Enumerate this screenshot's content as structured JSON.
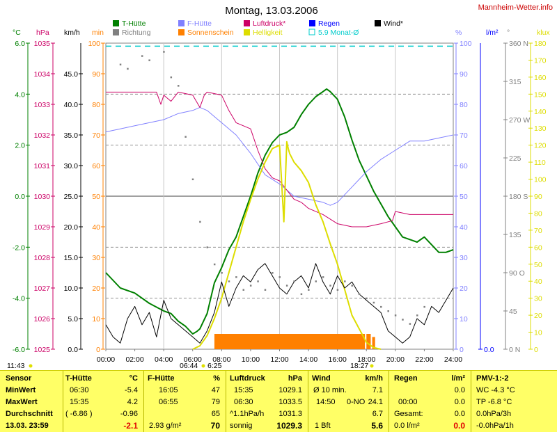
{
  "title": "Montag, 13.03.2006",
  "site": "Mannheim-Wetter.info",
  "colors": {
    "temp": "#008000",
    "hum": "#8080ff",
    "press": "#cc0066",
    "rich": "#808080",
    "sun": "#ff8000",
    "light": "#dddd00",
    "rain": "#0000ff",
    "avg": "#00cccc",
    "wind": "#000000",
    "min": "#ff8000",
    "grid": "#808080"
  },
  "legend": [
    {
      "label": "T-Hütte",
      "color": "#008000",
      "kind": "box"
    },
    {
      "label": "F-Hütte",
      "color": "#8080ff",
      "kind": "box"
    },
    {
      "label": "Luftdruck*",
      "color": "#cc0066",
      "kind": "box"
    },
    {
      "label": "Regen",
      "color": "#0000ff",
      "kind": "box"
    },
    {
      "label": "Wind*",
      "color": "#000000",
      "kind": "box"
    },
    {
      "label": "Richtung",
      "color": "#808080",
      "kind": "box"
    },
    {
      "label": "Sonnenschein",
      "color": "#ff8000",
      "kind": "box"
    },
    {
      "label": "Helligkeit",
      "color": "#dddd00",
      "kind": "box"
    },
    {
      "label": "5.9 Monat-Ø",
      "color": "#00cccc",
      "kind": "outline"
    }
  ],
  "axes": {
    "temp": {
      "unit": "°C",
      "ticks": [
        "6.0",
        "4.0",
        "2.0",
        "0.0",
        "-2.0",
        "-4.0",
        "-6.0"
      ]
    },
    "press": {
      "unit": "hPa",
      "ticks": [
        "1035",
        "1034",
        "1033",
        "1032",
        "1031",
        "1030",
        "1029",
        "1028",
        "1027",
        "1026",
        "1025"
      ]
    },
    "wind": {
      "unit": "km/h",
      "ticks": [
        "45.0",
        "40.0",
        "35.0",
        "30.0",
        "25.0",
        "20.0",
        "15.0",
        "10.0",
        "5.0",
        "0.0"
      ]
    },
    "min": {
      "unit": "min",
      "ticks": [
        "100",
        "90",
        "80",
        "70",
        "60",
        "50",
        "40",
        "30",
        "20",
        "10",
        "0"
      ]
    },
    "hum": {
      "unit": "%",
      "ticks": [
        "100",
        "90",
        "80",
        "70",
        "60",
        "50",
        "40",
        "30",
        "20",
        "10",
        "0"
      ]
    },
    "rain": {
      "unit": "l/m²",
      "ticks": [
        "0.0"
      ]
    },
    "dir": {
      "unit": "°",
      "ticks": [
        "360 N",
        "315",
        "270 W",
        "225",
        "180 S",
        "135",
        "90 O",
        "45",
        "0 N"
      ]
    },
    "lux": {
      "unit": "klux",
      "ticks": [
        "180",
        "170",
        "160",
        "150",
        "140",
        "130",
        "120",
        "110",
        "100",
        "90",
        "80",
        "70",
        "60",
        "50",
        "40",
        "30",
        "20",
        "10",
        "0"
      ]
    },
    "x": {
      "ticks": [
        "00:00",
        "02:00",
        "04:00",
        "06:00",
        "08:00",
        "10:00",
        "12:00",
        "14:00",
        "16:00",
        "18:00",
        "20:00",
        "22:00",
        "24:00"
      ]
    }
  },
  "sun_events": {
    "sunrise_time": "06:44",
    "sunrise_fill": "6:25",
    "sunset": "18:27",
    "left": "11:43"
  },
  "chart_data": {
    "type": "line",
    "x_range": [
      0,
      24
    ],
    "series": [
      {
        "name": "T-Hütte",
        "axis": "temp",
        "ylim": [
          -6,
          6
        ],
        "x": [
          0,
          1,
          2,
          3,
          4,
          4.5,
          5,
          5.5,
          6,
          6.3,
          6.5,
          7,
          7.5,
          8,
          8.5,
          9,
          9.5,
          10,
          10.5,
          11,
          11.5,
          12,
          12.5,
          13,
          13.5,
          14,
          14.5,
          15,
          15.25,
          15.5,
          16,
          16.5,
          17,
          17.5,
          18,
          18.5,
          19,
          19.5,
          20,
          20.5,
          21,
          21.5,
          22,
          22.5,
          23,
          23.5,
          24
        ],
        "y": [
          -3.0,
          -3.6,
          -3.8,
          -4.2,
          -4.5,
          -4.6,
          -4.9,
          -5.1,
          -5.4,
          -5.3,
          -5.2,
          -4.6,
          -3.4,
          -2.8,
          -2.1,
          -1.6,
          -0.8,
          0.0,
          0.9,
          1.6,
          2.1,
          2.4,
          2.5,
          2.7,
          3.2,
          3.6,
          3.9,
          4.1,
          4.2,
          4.1,
          3.8,
          3.1,
          2.2,
          1.4,
          0.8,
          0.2,
          -0.3,
          -0.8,
          -1.2,
          -1.6,
          -1.7,
          -1.8,
          -1.6,
          -1.9,
          -2.2,
          -2.2,
          -2.1
        ]
      },
      {
        "name": "F-Hütte",
        "axis": "hum",
        "ylim": [
          0,
          100
        ],
        "x": [
          0,
          1,
          2,
          3,
          4,
          5,
          6,
          6.5,
          7,
          7.5,
          8,
          9,
          10,
          11,
          12,
          13,
          14,
          15,
          15.5,
          16,
          17,
          18,
          19,
          20,
          21,
          22,
          23,
          24
        ],
        "y": [
          71,
          72,
          73,
          74,
          75,
          77,
          78,
          79,
          78,
          76,
          74,
          70,
          64,
          57,
          54,
          50,
          49,
          48,
          47,
          48,
          53,
          58,
          62,
          65,
          68,
          68,
          69,
          70
        ]
      },
      {
        "name": "Luftdruck*",
        "axis": "press",
        "ylim": [
          1025,
          1035
        ],
        "x": [
          0,
          3.5,
          3.8,
          4,
          4.5,
          5,
          6,
          6.5,
          6.8,
          7,
          8,
          8.5,
          9,
          9.5,
          10,
          10.5,
          11,
          11.5,
          12,
          12.5,
          13,
          13.5,
          14,
          15,
          16,
          17,
          18,
          19,
          19.8,
          20,
          21,
          22,
          24
        ],
        "y": [
          1033.4,
          1033.4,
          1033.0,
          1033.3,
          1033.1,
          1033.4,
          1033.3,
          1032.9,
          1033.3,
          1033.4,
          1033.3,
          1032.8,
          1032.4,
          1032.3,
          1032.2,
          1031.5,
          1030.9,
          1030.6,
          1030.5,
          1030.2,
          1029.9,
          1029.8,
          1029.6,
          1029.4,
          1029.1,
          1029.0,
          1029.0,
          1029.1,
          1029.2,
          1029.5,
          1029.4,
          1029.4,
          1029.4
        ]
      },
      {
        "name": "Helligkeit",
        "axis": "lux",
        "ylim": [
          0,
          180
        ],
        "x": [
          6,
          6.5,
          7,
          7.5,
          8,
          8.5,
          9,
          9.5,
          10,
          10.5,
          11,
          11.5,
          12,
          12.3,
          12.5,
          12.6,
          12.7,
          13,
          13.5,
          14,
          14.5,
          15,
          15.5,
          16,
          16.5,
          17,
          17.5,
          18,
          18.5,
          19
        ],
        "y": [
          0,
          2,
          8,
          18,
          30,
          45,
          60,
          75,
          88,
          100,
          110,
          118,
          120,
          75,
          122,
          118,
          115,
          110,
          105,
          98,
          85,
          75,
          62,
          50,
          35,
          20,
          12,
          4,
          1,
          0
        ]
      },
      {
        "name": "Wind*",
        "axis": "wind",
        "ylim": [
          0,
          50
        ],
        "x": [
          0,
          0.5,
          1,
          1.5,
          2,
          2.5,
          3,
          3.5,
          4,
          4.5,
          5,
          5.5,
          6,
          6.5,
          7,
          7.5,
          8,
          8.5,
          9,
          9.5,
          10,
          10.5,
          11,
          11.5,
          12,
          12.5,
          13,
          13.5,
          14,
          14.5,
          15,
          15.5,
          16,
          16.5,
          17,
          17.5,
          18,
          18.5,
          19,
          19.5,
          20,
          20.5,
          21,
          21.5,
          22,
          22.5,
          23,
          23.5,
          24
        ],
        "y": [
          4,
          2,
          1,
          5,
          7,
          4,
          6,
          2,
          8,
          5,
          4,
          3,
          2,
          1,
          3,
          6,
          11,
          7,
          10,
          12,
          11,
          13,
          14,
          12,
          10,
          9,
          11,
          12,
          10,
          14,
          11,
          9,
          12,
          10,
          11,
          9,
          8,
          7,
          6,
          3,
          2,
          1,
          2,
          5,
          4,
          7,
          6,
          8,
          10
        ]
      },
      {
        "name": "Richtung",
        "axis": "dir",
        "ylim": [
          0,
          360
        ],
        "x": [
          1,
          1.5,
          2.5,
          3,
          4,
          4.5,
          5,
          5.5,
          6,
          6.5,
          7,
          7.5,
          8,
          8.5,
          9,
          9.5,
          10,
          10.5,
          11,
          11.5,
          12,
          12.5,
          13,
          13.5,
          14,
          14.5,
          15,
          15.5,
          16,
          16.5,
          17,
          17.5,
          18,
          18.5,
          19,
          19.5,
          20,
          20.5,
          21,
          21.5,
          22
        ],
        "y": [
          335,
          330,
          345,
          340,
          350,
          320,
          310,
          250,
          200,
          150,
          120,
          100,
          90,
          80,
          85,
          70,
          75,
          80,
          70,
          90,
          85,
          75,
          80,
          65,
          70,
          80,
          85,
          75,
          70,
          80,
          75,
          65,
          60,
          55,
          50,
          45,
          40,
          35,
          30,
          40,
          50
        ]
      },
      {
        "name": "5.9 Monat-Ø",
        "axis": "hum",
        "ylim": [
          0,
          100
        ],
        "x": [
          0,
          24
        ],
        "y": [
          99,
          99
        ]
      }
    ],
    "sunshine_minutes": {
      "name": "Sonnenschein",
      "axis": "min",
      "ylim": [
        0,
        100
      ],
      "bars": [
        [
          7.5,
          17.9,
          5
        ],
        [
          18.0,
          18.3,
          5
        ],
        [
          18.4,
          18.6,
          4
        ]
      ]
    },
    "rain": {
      "name": "Regen",
      "total": "0.0"
    }
  },
  "stats": {
    "sensor": {
      "h1": "Sensor",
      "r1": "MinWert",
      "r2": "MaxWert",
      "r3": "Durchschnitt",
      "r4": "13.03.  23:59"
    },
    "temp": {
      "h1": "T-Hütte",
      "h2": "°C",
      "r1a": "06:30",
      "r1b": "-5.4",
      "r2a": "15:35",
      "r2b": "4.2",
      "r3a": "( -6.86 )",
      "r3b": "-0.96",
      "r4b": "-2.1"
    },
    "hum": {
      "h1": "F-Hütte",
      "h2": "%",
      "r1a": "16:05",
      "r1b": "47",
      "r2a": "06:55",
      "r2b": "79",
      "r3b": "65",
      "r4a": "2.93 g/m²",
      "r4b": "70"
    },
    "press": {
      "h1": "Luftdruck",
      "h2": "hPa",
      "r1a": "15:35",
      "r1b": "1029.1",
      "r2a": "06:30",
      "r2b": "1033.5",
      "r3a": "^1.1hPa/h",
      "r3b": "1031.3",
      "r4a": "sonnig",
      "r4b": "1029.3"
    },
    "wind": {
      "h1": "Wind",
      "h2": "km/h",
      "r1a": "Ø 10 min.",
      "r1b": "7.1",
      "r2a": "14:50",
      "r2c": "0-NO",
      "r2b": "24.1",
      "r3b": "6.7",
      "r4a": "1 Bft",
      "r4b": "5.6"
    },
    "rain": {
      "h1": "Regen",
      "h2": "l/m²",
      "r1b": "0.0",
      "r2a": "00:00",
      "r2b": "0.0",
      "r3a": "Gesamt:",
      "r3b": "0.0",
      "r4a": "0.0 l/m²",
      "r4b": "0.0"
    },
    "pmv": {
      "h1": "PMV-1:-2",
      "r1": "WC -4.3 °C",
      "r2": "TP -6.8 °C",
      "r3": "0.0hPa/3h",
      "r4": "-0.0hPa/1h"
    }
  }
}
